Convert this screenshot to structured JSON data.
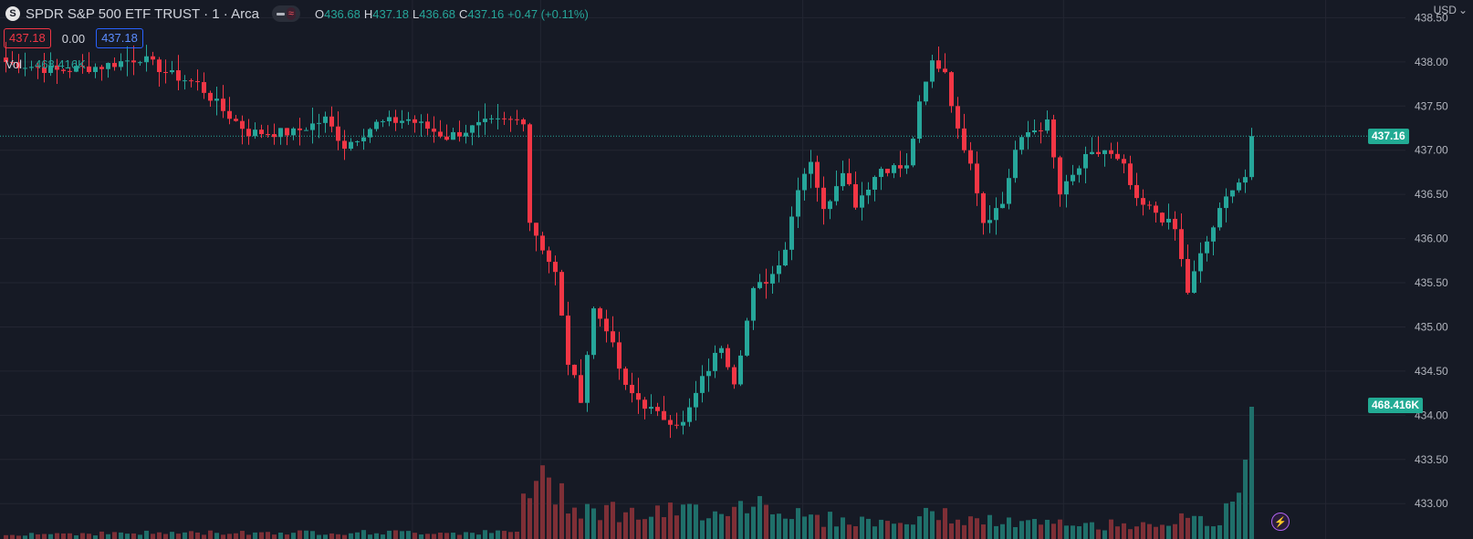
{
  "header": {
    "symbol_icon": "S",
    "symbol_title": "SPDR S&P 500 ETF TRUST · 1 · Arca",
    "ohlc": {
      "o_label": "O",
      "o_value": "436.68",
      "h_label": "H",
      "h_value": "437.18",
      "l_label": "L",
      "l_value": "436.68",
      "c_label": "C",
      "c_value": "437.16",
      "change": "+0.47 (+0.11%)"
    }
  },
  "quote": {
    "bid": "437.18",
    "spread": "0.00",
    "ask": "437.18"
  },
  "volume_legend": {
    "label": "Vol",
    "value": "468.416K"
  },
  "price_axis": {
    "currency": "USD",
    "last_price_tag": "437.16",
    "volume_tag": "468.416K"
  },
  "colors": {
    "up": "#26a69a",
    "down": "#f23645",
    "up_volume": "#1f6f6a",
    "down_volume": "#7e2f36",
    "background": "#161a25"
  },
  "icons": [
    "symbol-logo-icon",
    "lightning-icon",
    "chevron-down-icon"
  ],
  "chart_data": {
    "type": "candlestick",
    "interval": "1 minute",
    "y_ticks": [
      "438.50",
      "438.00",
      "437.50",
      "437.00",
      "436.50",
      "436.00",
      "435.50",
      "435.00",
      "434.50",
      "434.00",
      "433.50",
      "433.00"
    ],
    "ylim": [
      432.6,
      438.7
    ],
    "grid": true,
    "last_price": 437.16,
    "last_volume": 468416,
    "anchors": [
      [
        0,
        438.0
      ],
      [
        8,
        437.9
      ],
      [
        15,
        437.95
      ],
      [
        21,
        438.05
      ],
      [
        26,
        437.85
      ],
      [
        30,
        437.75
      ],
      [
        34,
        437.45
      ],
      [
        38,
        437.2
      ],
      [
        45,
        437.2
      ],
      [
        50,
        437.35
      ],
      [
        53,
        437.05
      ],
      [
        58,
        437.3
      ],
      [
        63,
        437.35
      ],
      [
        69,
        437.15
      ],
      [
        75,
        437.3
      ],
      [
        81,
        437.35
      ],
      [
        82,
        436.2
      ],
      [
        86,
        435.6
      ],
      [
        88,
        434.6
      ],
      [
        90,
        434.2
      ],
      [
        92,
        435.2
      ],
      [
        94,
        435.0
      ],
      [
        97,
        434.3
      ],
      [
        102,
        434.0
      ],
      [
        106,
        433.9
      ],
      [
        109,
        434.4
      ],
      [
        112,
        434.8
      ],
      [
        114,
        434.4
      ],
      [
        117,
        435.4
      ],
      [
        120,
        435.6
      ],
      [
        122,
        435.9
      ],
      [
        124,
        436.6
      ],
      [
        126,
        436.9
      ],
      [
        128,
        436.3
      ],
      [
        131,
        436.8
      ],
      [
        133,
        436.4
      ],
      [
        137,
        436.8
      ],
      [
        141,
        436.8
      ],
      [
        143,
        437.5
      ],
      [
        145,
        438.0
      ],
      [
        147,
        437.9
      ],
      [
        149,
        437.2
      ],
      [
        151,
        436.9
      ],
      [
        153,
        436.2
      ],
      [
        156,
        436.4
      ],
      [
        158,
        437.0
      ],
      [
        160,
        437.2
      ],
      [
        163,
        437.3
      ],
      [
        165,
        436.5
      ],
      [
        167,
        436.7
      ],
      [
        169,
        436.9
      ],
      [
        172,
        437.0
      ],
      [
        175,
        436.8
      ],
      [
        177,
        436.4
      ],
      [
        180,
        436.3
      ],
      [
        183,
        436.1
      ],
      [
        185,
        435.4
      ],
      [
        187,
        435.8
      ],
      [
        190,
        436.3
      ],
      [
        192,
        436.6
      ],
      [
        194,
        436.7
      ],
      [
        195,
        437.16
      ]
    ],
    "volume_anchors": [
      [
        0,
        0.04
      ],
      [
        40,
        0.05
      ],
      [
        80,
        0.05
      ],
      [
        81,
        0.38
      ],
      [
        85,
        0.42
      ],
      [
        90,
        0.25
      ],
      [
        100,
        0.18
      ],
      [
        115,
        0.25
      ],
      [
        118,
        0.3
      ],
      [
        125,
        0.16
      ],
      [
        140,
        0.12
      ],
      [
        146,
        0.2
      ],
      [
        150,
        0.14
      ],
      [
        170,
        0.1
      ],
      [
        184,
        0.14
      ],
      [
        190,
        0.12
      ],
      [
        193,
        0.35
      ],
      [
        194,
        0.6
      ],
      [
        195,
        1.0
      ]
    ]
  }
}
